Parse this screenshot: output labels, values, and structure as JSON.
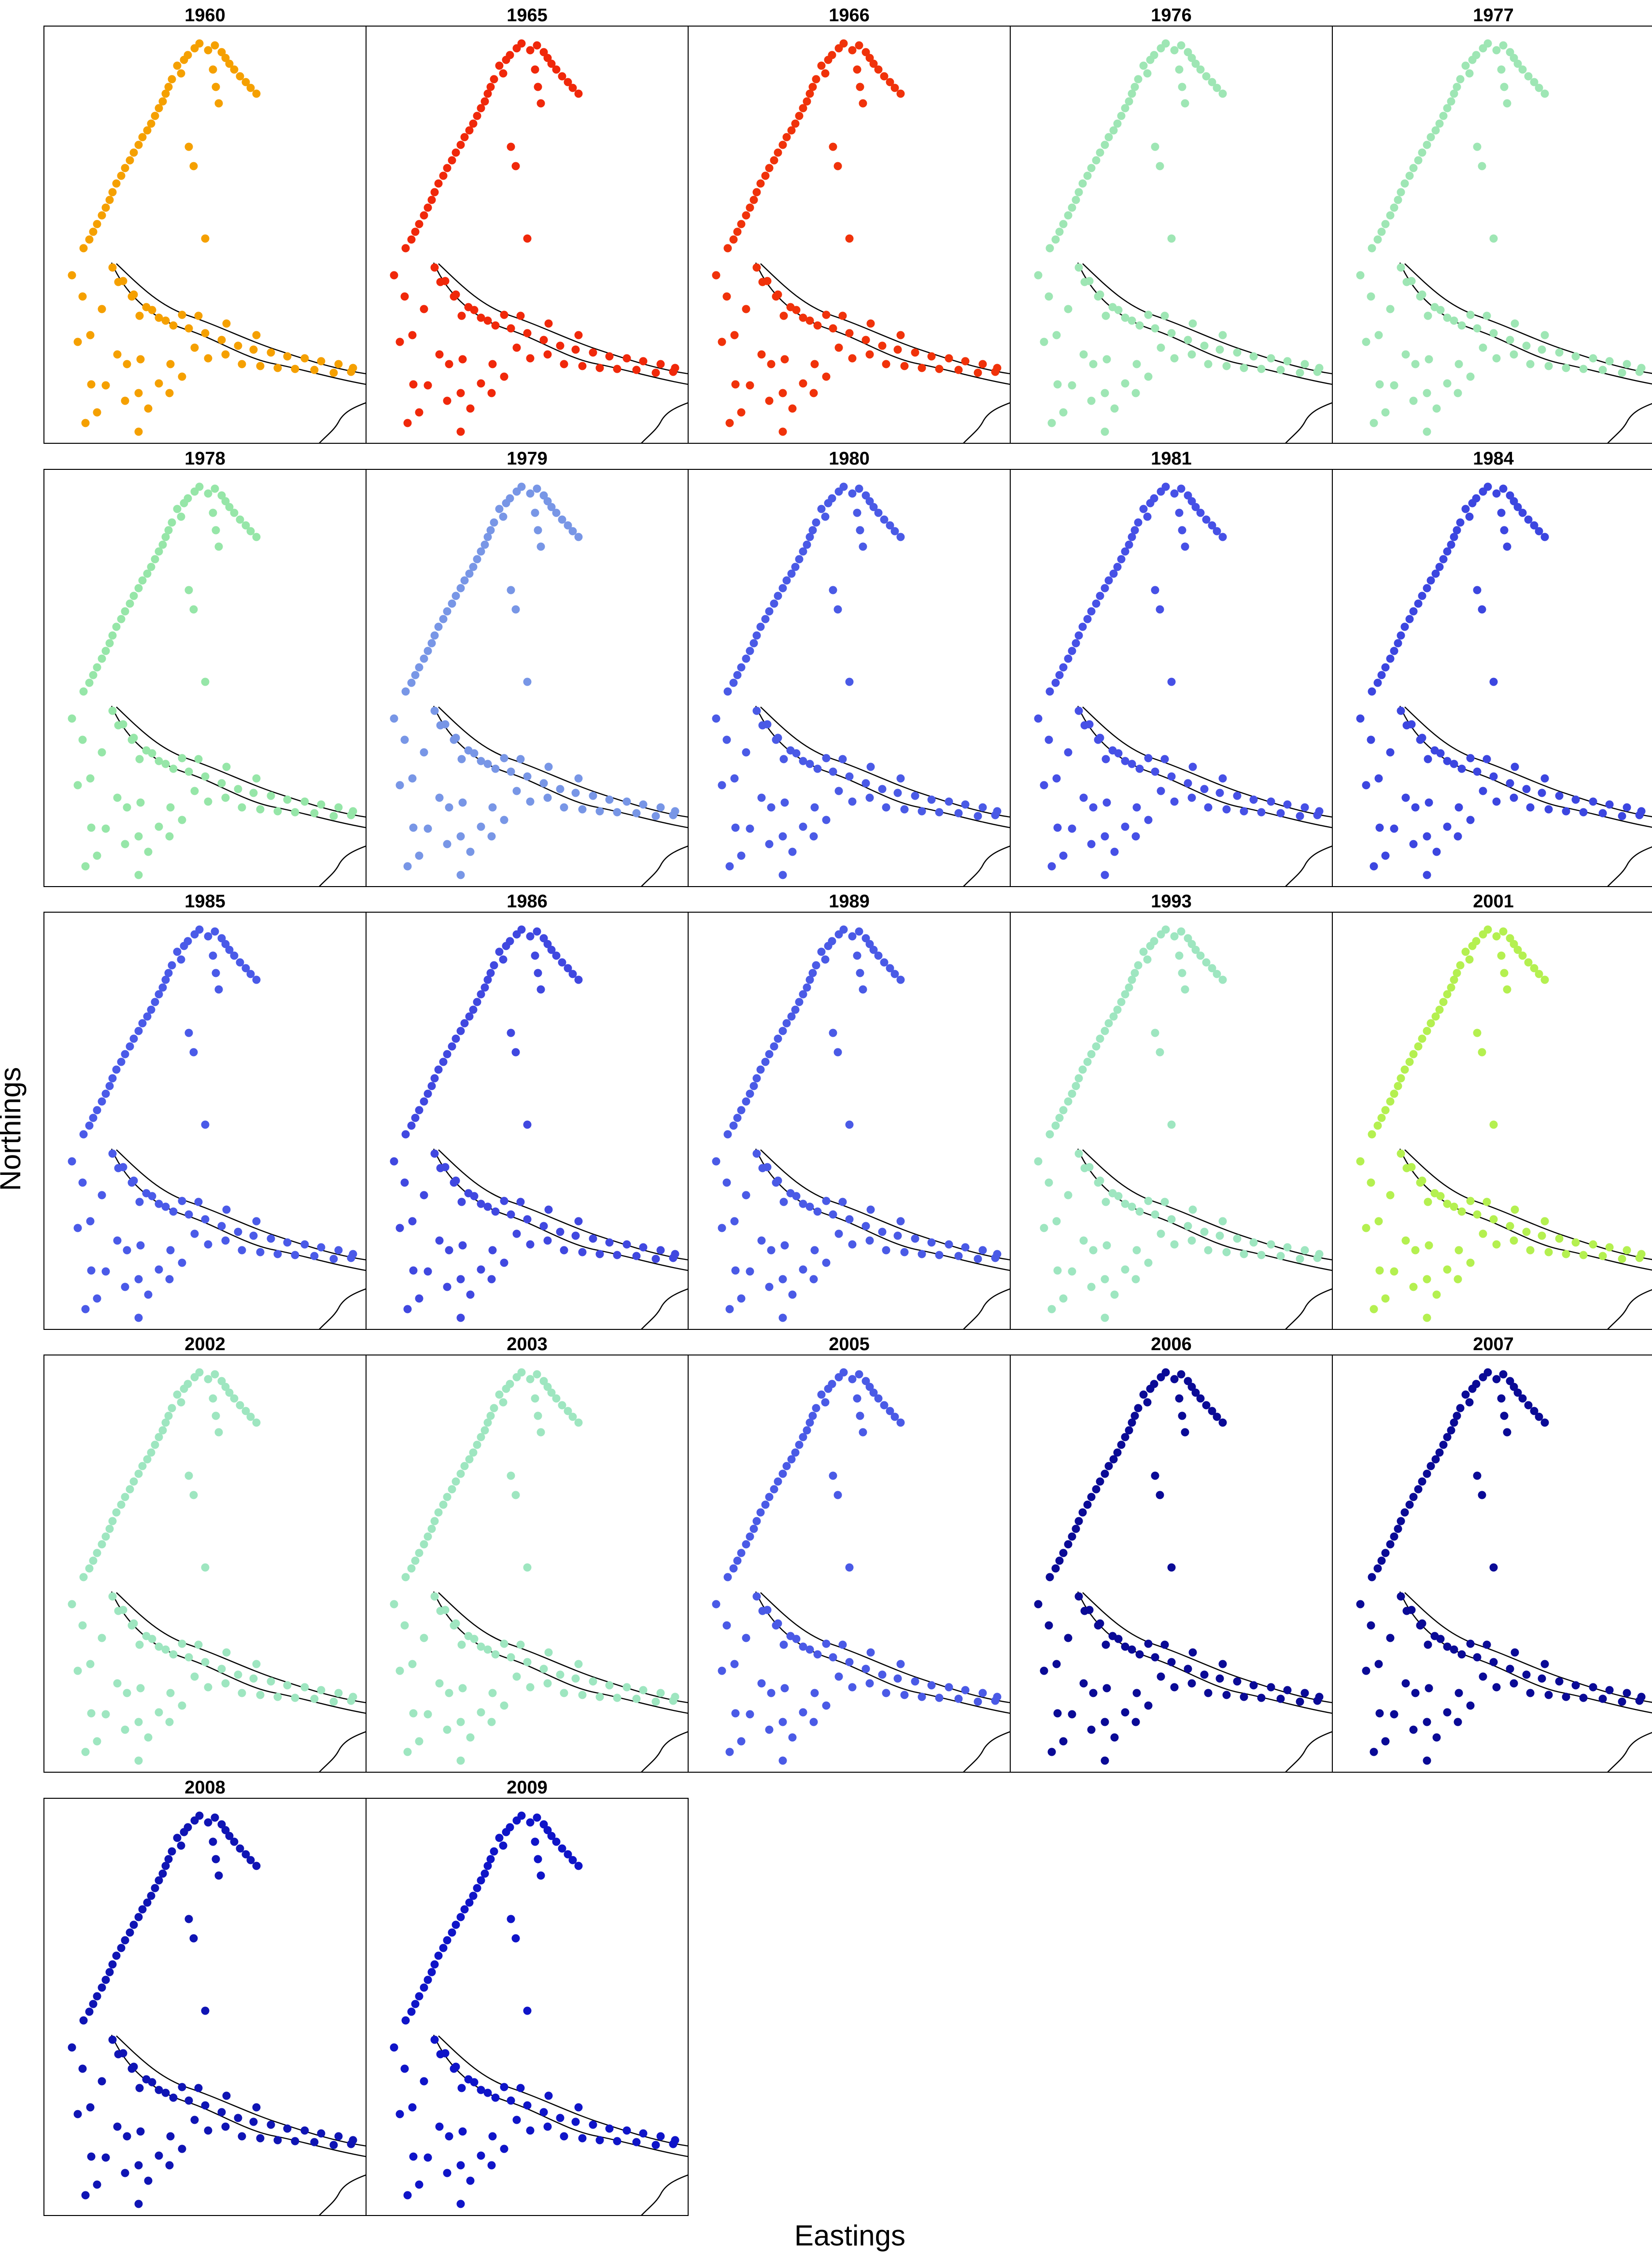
{
  "figure": {
    "xlabel": "Eastings",
    "ylabel": "Northings",
    "columns": 5
  },
  "panels": [
    {
      "year": "1960",
      "color": "#f5a000"
    },
    {
      "year": "1965",
      "color": "#f0280a"
    },
    {
      "year": "1966",
      "color": "#f0320a"
    },
    {
      "year": "1976",
      "color": "#9ee6b4"
    },
    {
      "year": "1977",
      "color": "#9ee6b4"
    },
    {
      "year": "1978",
      "color": "#96e6a8"
    },
    {
      "year": "1979",
      "color": "#7896e6"
    },
    {
      "year": "1980",
      "color": "#4a5ae6"
    },
    {
      "year": "1981",
      "color": "#4650e6"
    },
    {
      "year": "1984",
      "color": "#3c46e0"
    },
    {
      "year": "1985",
      "color": "#4a5ae8"
    },
    {
      "year": "1986",
      "color": "#4048e0"
    },
    {
      "year": "1989",
      "color": "#4a5ae6"
    },
    {
      "year": "1993",
      "color": "#9ee6c0"
    },
    {
      "year": "2001",
      "color": "#b4f050"
    },
    {
      "year": "2002",
      "color": "#9ee6c0"
    },
    {
      "year": "2003",
      "color": "#9ee6c0"
    },
    {
      "year": "2005",
      "color": "#4a5ae6"
    },
    {
      "year": "2006",
      "color": "#0a0a96"
    },
    {
      "year": "2007",
      "color": "#0a0a96"
    },
    {
      "year": "2008",
      "color": "#0f14b4"
    },
    {
      "year": "2009",
      "color": "#0f14c8"
    }
  ]
}
